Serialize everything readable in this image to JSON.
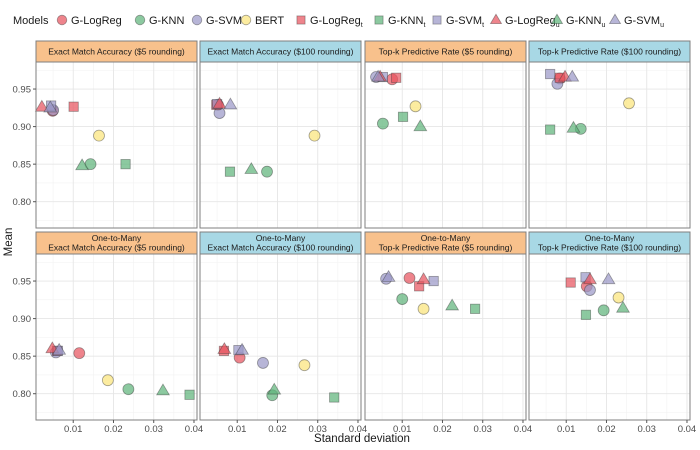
{
  "chart_data": {
    "type": "scatter",
    "xlabel": "Standard deviation",
    "ylabel": "Mean",
    "xlim": [
      0.00075,
      0.04075
    ],
    "ylim": [
      0.765,
      0.986
    ],
    "x_ticks": [
      "0.01",
      "0.02",
      "0.03",
      "0.04"
    ],
    "x_tick_values": [
      0.01,
      0.02,
      0.03,
      0.04
    ],
    "y_ticks": [
      "0.80",
      "0.85",
      "0.90",
      "0.95"
    ],
    "y_tick_values": [
      0.8,
      0.85,
      0.9,
      0.95
    ],
    "grid": true,
    "legend": {
      "title": "Models",
      "placement": "top",
      "entries": [
        {
          "label": "G-LogReg",
          "sub": "",
          "color": "#e8555f",
          "shape": "circle"
        },
        {
          "label": "G-KNN",
          "sub": "",
          "color": "#5fb47c",
          "shape": "circle"
        },
        {
          "label": "G-SVM",
          "sub": "",
          "color": "#9b98c8",
          "shape": "circle"
        },
        {
          "label": "BERT",
          "sub": "",
          "color": "#fbe47c",
          "shape": "circle"
        },
        {
          "label": "G-LogReg",
          "sub": "t",
          "color": "#e8555f",
          "shape": "square"
        },
        {
          "label": "G-KNN",
          "sub": "t",
          "color": "#5fb47c",
          "shape": "square"
        },
        {
          "label": "G-SVM",
          "sub": "t",
          "color": "#9b98c8",
          "shape": "square"
        },
        {
          "label": "G-LogReg",
          "sub": "u",
          "color": "#e8555f",
          "shape": "triangle"
        },
        {
          "label": "G-KNN",
          "sub": "u",
          "color": "#5fb47c",
          "shape": "triangle"
        },
        {
          "label": "G-SVM",
          "sub": "u",
          "color": "#9b98c8",
          "shape": "triangle"
        }
      ]
    },
    "strip_colors": {
      "five": "#f8c18c",
      "hundred": "#a8d8e5"
    },
    "panels": [
      {
        "title": [
          "Exact Match Accuracy ($5 rounding)"
        ],
        "strip": "five",
        "points": [
          [
            0.0049,
            0.921
          ],
          [
            0.0143,
            0.85
          ],
          [
            0.005,
            0.922
          ],
          [
            0.0164,
            0.888
          ],
          [
            0.0101,
            0.9265
          ],
          [
            0.023,
            0.85
          ],
          [
            0.0045,
            0.928
          ],
          [
            0.0022,
            0.926
          ],
          [
            0.0122,
            0.848
          ],
          [
            0.0043,
            0.925
          ]
        ]
      },
      {
        "title": [
          "Exact Match Accuracy ($100 rounding)"
        ],
        "strip": "hundred",
        "points": [
          [
            0.0052,
            0.929
          ],
          [
            0.0174,
            0.84
          ],
          [
            0.0056,
            0.918
          ],
          [
            0.0292,
            0.888
          ],
          [
            0.0048,
            0.929
          ],
          [
            0.0082,
            0.84
          ],
          [
            0.005,
            0.93
          ],
          [
            0.0056,
            0.93
          ],
          [
            0.0135,
            0.843
          ],
          [
            0.0083,
            0.929
          ]
        ]
      },
      {
        "title": [
          "Top-k Predictive Rate ($5 rounding)"
        ],
        "strip": "five",
        "points": [
          [
            0.0075,
            0.963
          ],
          [
            0.0052,
            0.904
          ],
          [
            0.0035,
            0.966
          ],
          [
            0.0133,
            0.927
          ],
          [
            0.0085,
            0.965
          ],
          [
            0.0102,
            0.913
          ],
          [
            0.0052,
            0.966
          ],
          [
            0.0045,
            0.966
          ],
          [
            0.0145,
            0.9
          ],
          [
            0.004,
            0.966
          ]
        ]
      },
      {
        "title": [
          "Top-k Predictive Rate ($100 rounding)"
        ],
        "strip": "hundred",
        "points": [
          [
            0.0084,
            0.964
          ],
          [
            0.0136,
            0.897
          ],
          [
            0.0078,
            0.957
          ],
          [
            0.0256,
            0.931
          ],
          [
            0.0084,
            0.965
          ],
          [
            0.006,
            0.896
          ],
          [
            0.006,
            0.97
          ],
          [
            0.0097,
            0.966
          ],
          [
            0.0118,
            0.898
          ],
          [
            0.0115,
            0.966
          ]
        ]
      },
      {
        "title": [
          "One-to-Many",
          "Exact Match Accuracy ($5 rounding)"
        ],
        "strip": "five",
        "points": [
          [
            0.0115,
            0.854
          ],
          [
            0.0237,
            0.806
          ],
          [
            0.0057,
            0.855
          ],
          [
            0.0186,
            0.818
          ],
          [
            0.006,
            0.857
          ],
          [
            0.0389,
            0.7986
          ],
          [
            0.0062,
            0.857
          ],
          [
            0.0048,
            0.86
          ],
          [
            0.0323,
            0.804
          ],
          [
            0.0065,
            0.858
          ]
        ]
      },
      {
        "title": [
          "One-to-Many",
          "Exact Match Accuracy ($100 rounding)"
        ],
        "strip": "hundred",
        "points": [
          [
            0.0106,
            0.848
          ],
          [
            0.0187,
            0.798
          ],
          [
            0.0164,
            0.841
          ],
          [
            0.0267,
            0.838
          ],
          [
            0.0067,
            0.857
          ],
          [
            0.0341,
            0.795
          ],
          [
            0.0103,
            0.858
          ],
          [
            0.0068,
            0.859
          ],
          [
            0.0192,
            0.805
          ],
          [
            0.0112,
            0.858
          ]
        ]
      },
      {
        "title": [
          "One-to-Many",
          "Top-k Predictive Rate ($5 rounding)"
        ],
        "strip": "five",
        "points": [
          [
            0.0118,
            0.954
          ],
          [
            0.01,
            0.926
          ],
          [
            0.006,
            0.953
          ],
          [
            0.0153,
            0.913
          ],
          [
            0.0142,
            0.943
          ],
          [
            0.0281,
            0.913
          ],
          [
            0.0178,
            0.95
          ],
          [
            0.0153,
            0.952
          ],
          [
            0.0224,
            0.917
          ],
          [
            0.0066,
            0.955
          ]
        ]
      },
      {
        "title": [
          "One-to-Many",
          "Top-k Predictive Rate ($100 rounding)"
        ],
        "strip": "hundred",
        "points": [
          [
            0.0151,
            0.943
          ],
          [
            0.0193,
            0.911
          ],
          [
            0.0159,
            0.938
          ],
          [
            0.023,
            0.928
          ],
          [
            0.0111,
            0.948
          ],
          [
            0.0149,
            0.905
          ],
          [
            0.0148,
            0.955
          ],
          [
            0.0159,
            0.952
          ],
          [
            0.0241,
            0.914
          ],
          [
            0.0205,
            0.952
          ]
        ]
      }
    ]
  }
}
